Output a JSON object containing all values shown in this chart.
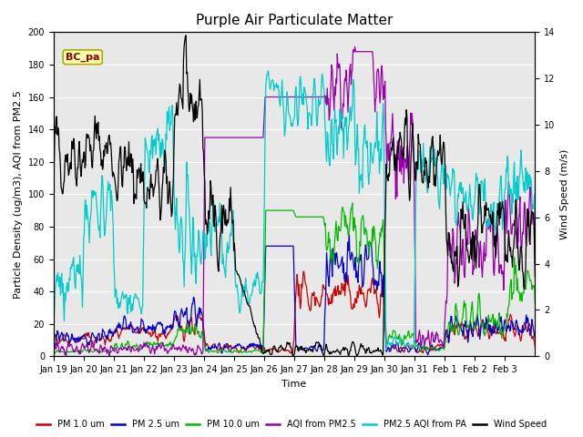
{
  "title": "Purple Air Particulate Matter",
  "xlabel": "Time",
  "ylabel_left": "Particle Density (ug/m3), AQI from PM2.5",
  "ylabel_right": "Wind Speed (m/s)",
  "ylim_left": [
    0,
    200
  ],
  "ylim_right": [
    0,
    14
  ],
  "date_labels": [
    "Jan 19",
    "Jan 20",
    "Jan 21",
    "Jan 22",
    "Jan 23",
    "Jan 24",
    "Jan 25",
    "Jan 26",
    "Jan 27",
    "Jan 28",
    "Jan 29",
    "Jan 30",
    "Jan 31",
    "Feb 1",
    "Feb 2",
    "Feb 3"
  ],
  "annotation_text": "BC_pa",
  "legend_entries": [
    {
      "label": "PM 1.0 um",
      "color": "#cc0000"
    },
    {
      "label": "PM 2.5 um",
      "color": "#0000cc"
    },
    {
      "label": "PM 10.0 um",
      "color": "#00bb00"
    },
    {
      "label": "AQI from PM2.5",
      "color": "#9900aa"
    },
    {
      "label": "PM2.5 AQI from PA",
      "color": "#00cccc"
    },
    {
      "label": "Wind Speed",
      "color": "#000000"
    }
  ],
  "fig_bg": "#ffffff",
  "plot_bg": "#e8e8e8",
  "grid_color": "#ffffff",
  "title_fontsize": 11,
  "axis_fontsize": 8,
  "tick_fontsize": 8
}
